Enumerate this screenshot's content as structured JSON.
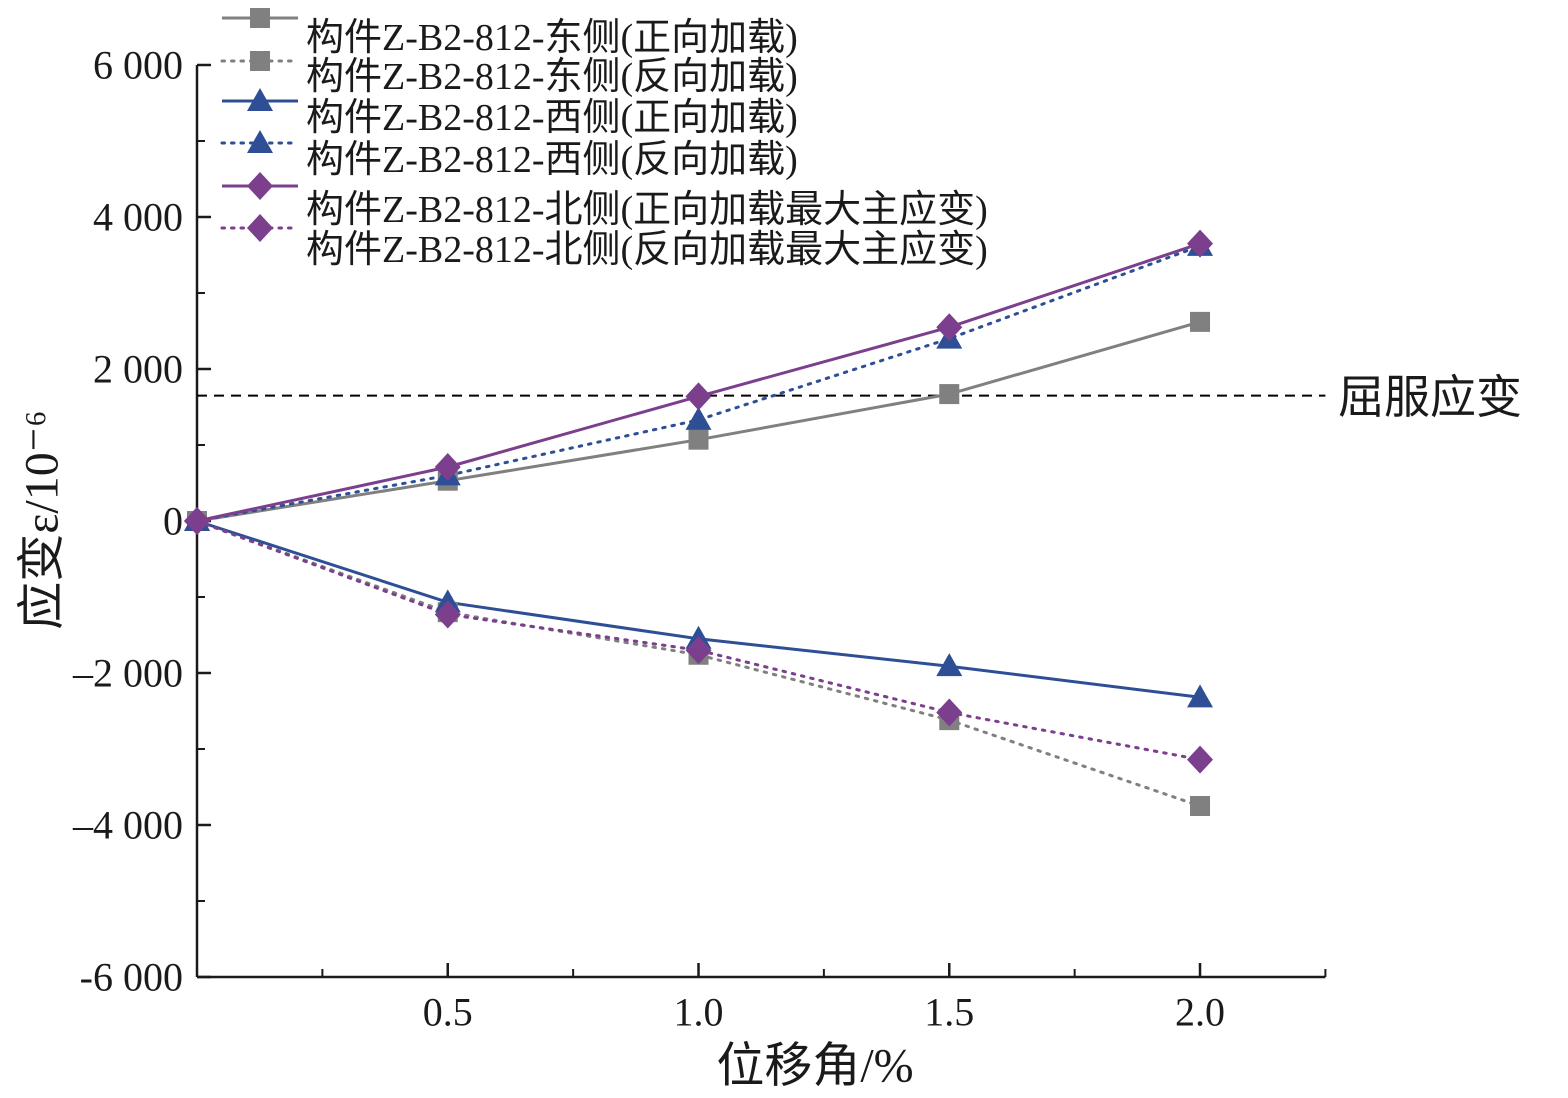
{
  "chart_data": {
    "type": "line",
    "xlabel": "位移角/%",
    "ylabel": "应变ε/10⁻⁶",
    "xlim": [
      0,
      2.25
    ],
    "ylim": [
      -6000,
      6000
    ],
    "grid": false,
    "legend": "top-left",
    "x_ticks": [
      {
        "value": 0.5,
        "label": "0.5"
      },
      {
        "value": 1.0,
        "label": "1.0"
      },
      {
        "value": 1.5,
        "label": "1.5"
      },
      {
        "value": 2.0,
        "label": "2.0"
      }
    ],
    "x_minor_ticks": [
      0.25,
      0.75,
      1.25,
      1.75,
      2.25
    ],
    "y_ticks": [
      {
        "value": 6000,
        "label": "6 000"
      },
      {
        "value": 4000,
        "label": "4 000"
      },
      {
        "value": 2000,
        "label": "2 000"
      },
      {
        "value": 0,
        "label": "0"
      },
      {
        "value": -2000,
        "label": "–2 000"
      },
      {
        "value": -4000,
        "label": "–4 000"
      },
      {
        "value": -6000,
        "label": "-6 000"
      }
    ],
    "y_minor_ticks": [
      5000,
      3000,
      1000,
      -1000,
      -3000,
      -5000
    ],
    "x": [
      0,
      0.5,
      1.0,
      1.5,
      2.0
    ],
    "series": [
      {
        "name": "构件Z-B2-812-东侧(正向加载)",
        "values": [
          0,
          530,
          1070,
          1670,
          2620
        ],
        "color": "#808080",
        "line": "solid",
        "marker": "square"
      },
      {
        "name": "构件Z-B2-812-东侧(反向加载)",
        "values": [
          0,
          -1200,
          -1760,
          -2620,
          -3750
        ],
        "color": "#808080",
        "line": "dotted",
        "marker": "square"
      },
      {
        "name": "构件Z-B2-812-西侧(正向加载)",
        "values": [
          0,
          -1070,
          -1550,
          -1910,
          -2320
        ],
        "color": "#2e4f95",
        "line": "solid",
        "marker": "triangle"
      },
      {
        "name": "构件Z-B2-812-西侧(反向加载)",
        "values": [
          0,
          600,
          1330,
          2400,
          3620
        ],
        "color": "#2e4f95",
        "line": "dotted",
        "marker": "triangle"
      },
      {
        "name": "构件Z-B2-812-北侧(正向加载最大主应变)",
        "values": [
          0,
          710,
          1640,
          2550,
          3650
        ],
        "color": "#7b3f8d",
        "line": "solid",
        "marker": "diamond"
      },
      {
        "name": "构件Z-B2-812-北侧(反向加载最大主应变)",
        "values": [
          0,
          -1230,
          -1700,
          -2520,
          -3140
        ],
        "color": "#7b3f8d",
        "line": "dotted",
        "marker": "diamond"
      }
    ],
    "reference_line": {
      "y": 1650,
      "label": "屈服应变",
      "style": "dashed",
      "color": "#000000"
    }
  }
}
